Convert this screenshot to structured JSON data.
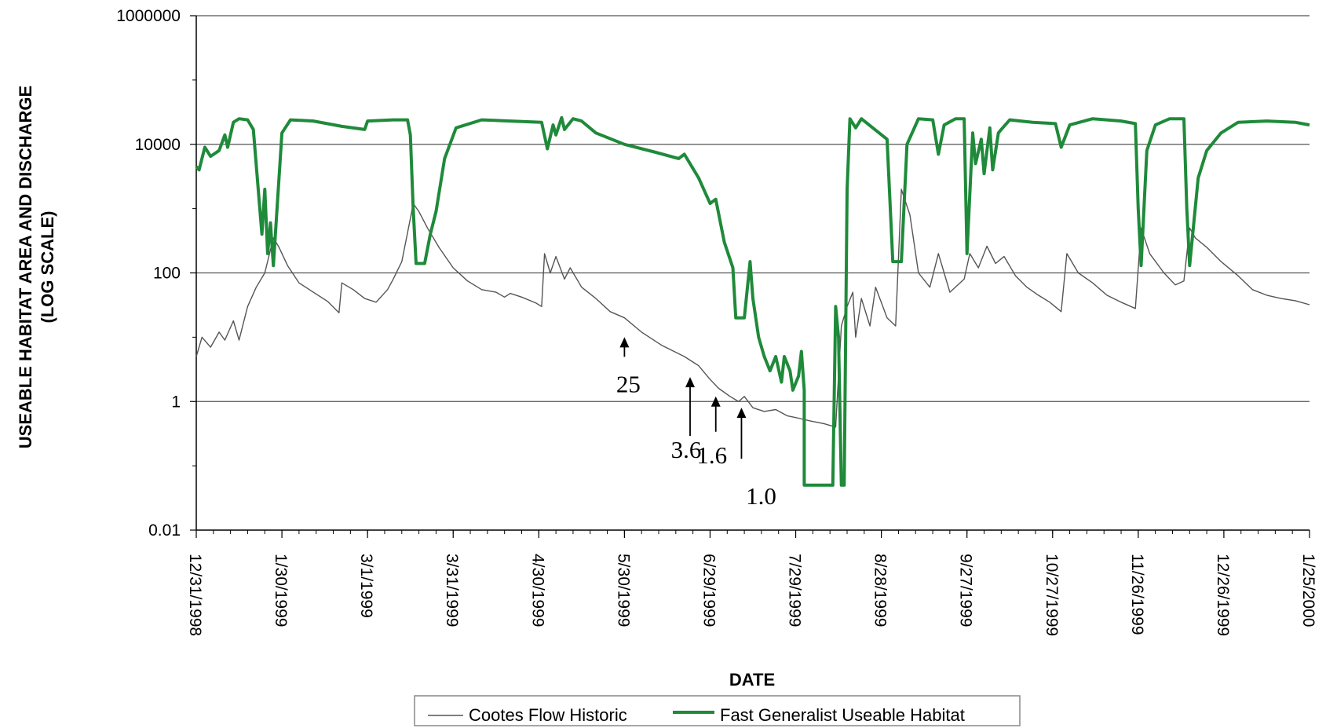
{
  "chart_data": {
    "type": "line",
    "title": "",
    "xlabel": "DATE",
    "ylabel": "USEABLE HABITAT AREA AND DISCHARGE",
    "ylabel2": "(LOG SCALE)",
    "yscale": "log",
    "ylim": [
      0.01,
      1000000
    ],
    "yticks": [
      "0.01",
      "1",
      "100",
      "10000",
      "1000000"
    ],
    "grid": "horizontal",
    "xlim": [
      "12/31/1998",
      "1/25/2000"
    ],
    "xticks": [
      "12/31/1998",
      "1/30/1999",
      "3/1/1999",
      "3/31/1999",
      "4/30/1999",
      "5/30/1999",
      "6/29/1999",
      "7/29/1999",
      "8/28/1999",
      "9/27/1999",
      "10/27/1999",
      "11/26/1999",
      "12/26/1999",
      "1/25/2000"
    ],
    "legend_position": "bottom",
    "series": [
      {
        "name": "Cootes Flow Historic",
        "color": "#555555",
        "points": [
          [
            "12/31/1998",
            5
          ],
          [
            "1/2/1999",
            10
          ],
          [
            "1/5/1999",
            7
          ],
          [
            "1/8/1999",
            12
          ],
          [
            "1/10/1999",
            9
          ],
          [
            "1/13/1999",
            18
          ],
          [
            "1/15/1999",
            9
          ],
          [
            "1/18/1999",
            30
          ],
          [
            "1/21/1999",
            60
          ],
          [
            "1/24/1999",
            100
          ],
          [
            "1/27/1999",
            350
          ],
          [
            "1/29/1999",
            250
          ],
          [
            "2/1/1999",
            130
          ],
          [
            "2/5/1999",
            70
          ],
          [
            "2/10/1999",
            50
          ],
          [
            "2/15/1999",
            36
          ],
          [
            "2/19/1999",
            24
          ],
          [
            "2/20/1999",
            70
          ],
          [
            "2/24/1999",
            55
          ],
          [
            "2/28/1999",
            40
          ],
          [
            "3/4/1999",
            35
          ],
          [
            "3/8/1999",
            55
          ],
          [
            "3/10/1999",
            80
          ],
          [
            "3/13/1999",
            150
          ],
          [
            "3/16/1999",
            700
          ],
          [
            "3/17/1999",
            1200
          ],
          [
            "3/19/1999",
            900
          ],
          [
            "3/22/1999",
            500
          ],
          [
            "3/26/1999",
            250
          ],
          [
            "3/31/1999",
            120
          ],
          [
            "4/5/1999",
            75
          ],
          [
            "4/10/1999",
            55
          ],
          [
            "4/15/1999",
            50
          ],
          [
            "4/18/1999",
            42
          ],
          [
            "4/20/1999",
            48
          ],
          [
            "4/24/1999",
            42
          ],
          [
            "4/29/1999",
            34
          ],
          [
            "5/1/1999",
            30
          ],
          [
            "5/2/1999",
            200
          ],
          [
            "5/4/1999",
            100
          ],
          [
            "5/6/1999",
            180
          ],
          [
            "5/9/1999",
            80
          ],
          [
            "5/11/1999",
            120
          ],
          [
            "5/15/1999",
            60
          ],
          [
            "5/20/1999",
            40
          ],
          [
            "5/25/1999",
            25
          ],
          [
            "5/30/1999",
            20
          ],
          [
            "6/5/1999",
            12
          ],
          [
            "6/12/1999",
            7.5
          ],
          [
            "6/20/1999",
            5
          ],
          [
            "6/25/1999",
            3.6
          ],
          [
            "6/29/1999",
            2.2
          ],
          [
            "7/2/1999",
            1.6
          ],
          [
            "7/6/1999",
            1.2
          ],
          [
            "7/9/1999",
            1.0
          ],
          [
            "7/11/1999",
            1.2
          ],
          [
            "7/14/1999",
            0.8
          ],
          [
            "7/18/1999",
            0.7
          ],
          [
            "7/22/1999",
            0.75
          ],
          [
            "7/26/1999",
            0.6
          ],
          [
            "7/30/1999",
            0.55
          ],
          [
            "8/3/1999",
            0.5
          ],
          [
            "8/8/1999",
            0.45
          ],
          [
            "8/12/1999",
            0.4
          ],
          [
            "8/14/1999",
            15
          ],
          [
            "8/16/1999",
            30
          ],
          [
            "8/18/1999",
            50
          ],
          [
            "8/19/1999",
            10
          ],
          [
            "8/21/1999",
            40
          ],
          [
            "8/24/1999",
            15
          ],
          [
            "8/26/1999",
            60
          ],
          [
            "8/30/1999",
            20
          ],
          [
            "9/2/1999",
            15
          ],
          [
            "9/4/1999",
            2000
          ],
          [
            "9/7/1999",
            800
          ],
          [
            "9/10/1999",
            100
          ],
          [
            "9/14/1999",
            60
          ],
          [
            "9/17/1999",
            200
          ],
          [
            "9/21/1999",
            50
          ],
          [
            "9/26/1999",
            80
          ],
          [
            "9/28/1999",
            200
          ],
          [
            "10/1/1999",
            120
          ],
          [
            "10/4/1999",
            260
          ],
          [
            "10/7/1999",
            140
          ],
          [
            "10/10/1999",
            180
          ],
          [
            "10/14/1999",
            90
          ],
          [
            "10/18/1999",
            60
          ],
          [
            "10/22/1999",
            45
          ],
          [
            "10/26/1999",
            35
          ],
          [
            "10/30/1999",
            25
          ],
          [
            "11/1/1999",
            200
          ],
          [
            "11/5/1999",
            100
          ],
          [
            "11/10/1999",
            70
          ],
          [
            "11/15/1999",
            45
          ],
          [
            "11/20/1999",
            35
          ],
          [
            "11/25/1999",
            28
          ],
          [
            "11/27/1999",
            500
          ],
          [
            "11/30/1999",
            200
          ],
          [
            "12/5/1999",
            100
          ],
          [
            "12/9/1999",
            65
          ],
          [
            "12/12/1999",
            75
          ],
          [
            "12/14/1999",
            500
          ],
          [
            "12/16/1999",
            350
          ],
          [
            "12/20/1999",
            250
          ],
          [
            "12/25/1999",
            150
          ],
          [
            "12/31/1999",
            90
          ],
          [
            "1/5/2000",
            55
          ],
          [
            "1/10/2000",
            45
          ],
          [
            "1/15/2000",
            40
          ],
          [
            "1/20/2000",
            37
          ],
          [
            "1/25/2000",
            32
          ]
        ]
      },
      {
        "name": "Fast Generalist Useable Habitat",
        "color": "#1f8a3a",
        "points": [
          [
            "12/31/1998",
            4500
          ],
          [
            "1/1/1999",
            4000
          ],
          [
            "1/3/1999",
            9000
          ],
          [
            "1/5/1999",
            6500
          ],
          [
            "1/8/1999",
            8000
          ],
          [
            "1/10/1999",
            14000
          ],
          [
            "1/11/1999",
            9000
          ],
          [
            "1/13/1999",
            22000
          ],
          [
            "1/15/1999",
            25000
          ],
          [
            "1/18/1999",
            24000
          ],
          [
            "1/20/1999",
            17000
          ],
          [
            "1/23/1999",
            400
          ],
          [
            "1/24/1999",
            2000
          ],
          [
            "1/25/1999",
            200
          ],
          [
            "1/26/1999",
            600
          ],
          [
            "1/27/1999",
            130
          ],
          [
            "1/30/1999",
            15000
          ],
          [
            "2/2/1999",
            24000
          ],
          [
            "2/10/1999",
            23000
          ],
          [
            "2/20/1999",
            19000
          ],
          [
            "2/28/1999",
            17000
          ],
          [
            "3/1/1999",
            23000
          ],
          [
            "3/10/1999",
            24000
          ],
          [
            "3/15/1999",
            24000
          ],
          [
            "3/16/1999",
            14000
          ],
          [
            "3/17/1999",
            1000
          ],
          [
            "3/18/1999",
            140
          ],
          [
            "3/21/1999",
            140
          ],
          [
            "3/23/1999",
            400
          ],
          [
            "3/25/1999",
            900
          ],
          [
            "3/28/1999",
            6000
          ],
          [
            "4/1/1999",
            18000
          ],
          [
            "4/10/1999",
            24000
          ],
          [
            "4/20/1999",
            23000
          ],
          [
            "5/1/1999",
            22000
          ],
          [
            "5/3/1999",
            8500
          ],
          [
            "5/5/1999",
            20000
          ],
          [
            "5/6/1999",
            14000
          ],
          [
            "5/8/1999",
            26000
          ],
          [
            "5/9/1999",
            17000
          ],
          [
            "5/12/1999",
            25000
          ],
          [
            "5/15/1999",
            23000
          ],
          [
            "5/20/1999",
            15000
          ],
          [
            "5/30/1999",
            10000
          ],
          [
            "6/10/1999",
            7500
          ],
          [
            "6/18/1999",
            6000
          ],
          [
            "6/20/1999",
            7000
          ],
          [
            "6/25/1999",
            3000
          ],
          [
            "6/29/1999",
            1200
          ],
          [
            "7/1/1999",
            1400
          ],
          [
            "7/4/1999",
            300
          ],
          [
            "7/7/1999",
            120
          ],
          [
            "7/8/1999",
            20
          ],
          [
            "7/11/1999",
            20
          ],
          [
            "7/13/1999",
            150
          ],
          [
            "7/14/1999",
            40
          ],
          [
            "7/16/1999",
            10
          ],
          [
            "7/18/1999",
            5
          ],
          [
            "7/20/1999",
            3
          ],
          [
            "7/22/1999",
            5
          ],
          [
            "7/24/1999",
            2
          ],
          [
            "7/25/1999",
            5
          ],
          [
            "7/27/1999",
            3
          ],
          [
            "7/28/1999",
            1.5
          ],
          [
            "7/30/1999",
            2.5
          ],
          [
            "7/31/1999",
            6
          ],
          [
            "8/1/1999",
            1.5
          ],
          [
            "8/1/1999",
            0.05
          ],
          [
            "8/11/1999",
            0.05
          ],
          [
            "8/12/1999",
            30
          ],
          [
            "8/13/1999",
            10
          ],
          [
            "8/14/1999",
            0.05
          ],
          [
            "8/15/1999",
            0.05
          ],
          [
            "8/16/1999",
            2000
          ],
          [
            "8/17/1999",
            25000
          ],
          [
            "8/19/1999",
            18000
          ],
          [
            "8/21/1999",
            25000
          ],
          [
            "8/25/1999",
            18000
          ],
          [
            "8/30/1999",
            12000
          ],
          [
            "9/1/1999",
            150
          ],
          [
            "9/4/1999",
            150
          ],
          [
            "9/6/1999",
            10000
          ],
          [
            "9/10/1999",
            25000
          ],
          [
            "9/15/1999",
            24000
          ],
          [
            "9/17/1999",
            7000
          ],
          [
            "9/19/1999",
            20000
          ],
          [
            "9/23/1999",
            25000
          ],
          [
            "9/26/1999",
            25000
          ],
          [
            "9/27/1999",
            200
          ],
          [
            "9/29/1999",
            15000
          ],
          [
            "9/30/1999",
            5000
          ],
          [
            "10/2/1999",
            12000
          ],
          [
            "10/3/1999",
            3500
          ],
          [
            "10/5/1999",
            18000
          ],
          [
            "10/6/1999",
            4000
          ],
          [
            "10/8/1999",
            15000
          ],
          [
            "10/9/1999",
            17000
          ],
          [
            "10/12/1999",
            24000
          ],
          [
            "10/20/1999",
            22000
          ],
          [
            "10/28/1999",
            21000
          ],
          [
            "10/30/1999",
            9000
          ],
          [
            "11/2/1999",
            20000
          ],
          [
            "11/10/1999",
            25000
          ],
          [
            "11/20/1999",
            23000
          ],
          [
            "11/25/1999",
            21000
          ],
          [
            "11/26/1999",
            1000
          ],
          [
            "11/27/1999",
            130
          ],
          [
            "11/29/1999",
            8000
          ],
          [
            "12/2/1999",
            20000
          ],
          [
            "12/7/1999",
            25000
          ],
          [
            "12/12/1999",
            25000
          ],
          [
            "12/13/1999",
            1000
          ],
          [
            "12/14/1999",
            130
          ],
          [
            "12/17/1999",
            3000
          ],
          [
            "12/20/1999",
            8000
          ],
          [
            "12/25/1999",
            15000
          ],
          [
            "12/31/1999",
            22000
          ],
          [
            "1/10/2000",
            23000
          ],
          [
            "1/20/2000",
            22000
          ],
          [
            "1/25/2000",
            20000
          ]
        ]
      }
    ],
    "annotations": [
      {
        "text": "25",
        "x": "5/30/1999",
        "y": 10
      },
      {
        "text": "3.6",
        "x": "6/22/1999",
        "y": 2.4
      },
      {
        "text": "1.6",
        "x": "7/1/1999",
        "y": 1.2
      },
      {
        "text": "1.0",
        "x": "7/10/1999",
        "y": 0.8
      }
    ]
  }
}
